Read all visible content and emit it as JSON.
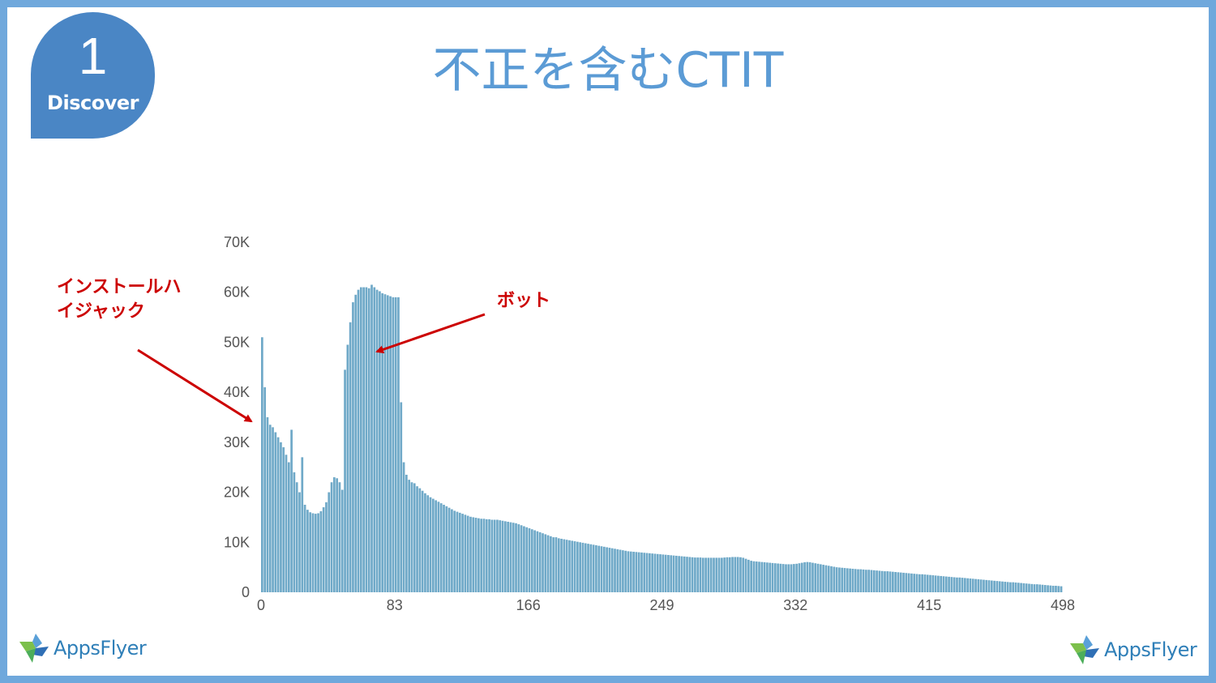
{
  "badge": {
    "number": "1",
    "label": "Discover"
  },
  "title": "不正を含むCTIT",
  "annotations": {
    "hijack": "インストールハイジャック",
    "bot": "ボット"
  },
  "logo": {
    "text": "AppsFlyer"
  },
  "colors": {
    "border": "#6fa8dc",
    "badge": "#4a86c5",
    "title": "#5b9bd5",
    "bar": "#6fa9c8",
    "annotation": "#cc0000"
  },
  "chart_data": {
    "type": "bar",
    "title": "",
    "xlabel": "",
    "ylabel": "",
    "ylim": [
      0,
      70000
    ],
    "xlim": [
      0,
      498
    ],
    "x_ticks": [
      0,
      83,
      166,
      249,
      332,
      415,
      498
    ],
    "y_ticks": [
      0,
      10000,
      20000,
      30000,
      40000,
      50000,
      60000,
      70000
    ],
    "y_tick_labels": [
      "0",
      "10K",
      "20K",
      "30K",
      "40K",
      "50K",
      "60K",
      "70K"
    ],
    "grid": false,
    "series": [
      {
        "values": [
          51000,
          41000,
          35000,
          33500,
          33000,
          32000,
          31000,
          30000,
          29000,
          27500,
          26000,
          32500,
          24000,
          22000,
          20000,
          27000,
          17500,
          16500,
          16000,
          15800,
          15700,
          15800,
          16200,
          17000,
          18000,
          20000,
          22000,
          23000,
          22800,
          22000,
          20500,
          44500,
          49500,
          54000,
          58000,
          59500,
          60500,
          61000,
          61000,
          61000,
          60800,
          61500,
          61000,
          60500,
          60200,
          59800,
          59600,
          59400,
          59200,
          59000,
          59000,
          59000,
          38000,
          26000,
          23500,
          22500,
          22000,
          21800,
          21200,
          20800,
          20300,
          19800,
          19400,
          19000,
          18700,
          18400,
          18100,
          17800,
          17500,
          17200,
          16900,
          16600,
          16300,
          16100,
          15900,
          15700,
          15500,
          15300,
          15100,
          15000,
          14900,
          14800,
          14700,
          14700,
          14600,
          14600,
          14500,
          14500,
          14500,
          14400,
          14300,
          14200,
          14100,
          14000,
          13900,
          13800,
          13600,
          13400,
          13200,
          13000,
          12800,
          12600,
          12400,
          12200,
          12000,
          11800,
          11600,
          11400,
          11200,
          11000,
          11000,
          10800,
          10700,
          10600,
          10500,
          10400,
          10300,
          10200,
          10100,
          10000,
          9900,
          9800,
          9700,
          9600,
          9500,
          9400,
          9300,
          9200,
          9100,
          9000,
          8900,
          8800,
          8700,
          8600,
          8500,
          8400,
          8300,
          8200,
          8150,
          8100,
          8050,
          8000,
          7950,
          7900,
          7850,
          7800,
          7750,
          7700,
          7650,
          7600,
          7550,
          7500,
          7450,
          7400,
          7350,
          7300,
          7250,
          7200,
          7150,
          7100,
          7050,
          7000,
          6950,
          6950,
          6950,
          6900,
          6900,
          6900,
          6900,
          6900,
          6900,
          6900,
          6900,
          6950,
          7000,
          7000,
          7050,
          7050,
          7050,
          7000,
          6900,
          6700,
          6500,
          6300,
          6200,
          6150,
          6100,
          6050,
          6000,
          5950,
          5900,
          5850,
          5800,
          5750,
          5700,
          5650,
          5600,
          5600,
          5600,
          5650,
          5700,
          5800,
          5900,
          6000,
          6050,
          6000,
          5900,
          5800,
          5700,
          5600,
          5500,
          5400,
          5300,
          5200,
          5100,
          5000,
          4950,
          4900,
          4850,
          4800,
          4750,
          4700,
          4650,
          4600,
          4600,
          4550,
          4500,
          4500,
          4450,
          4400,
          4350,
          4300,
          4250,
          4200,
          4200,
          4150,
          4100,
          4050,
          4000,
          3950,
          3900,
          3850,
          3800,
          3750,
          3700,
          3650,
          3600,
          3600,
          3550,
          3500,
          3450,
          3400,
          3350,
          3300,
          3250,
          3200,
          3150,
          3100,
          3050,
          3000,
          2950,
          2950,
          2900,
          2850,
          2800,
          2750,
          2700,
          2650,
          2600,
          2550,
          2500,
          2450,
          2400,
          2350,
          2300,
          2250,
          2200,
          2150,
          2100,
          2050,
          2000,
          2000,
          1950,
          1900,
          1850,
          1800,
          1750,
          1700,
          1650,
          1600,
          1600,
          1550,
          1500,
          1450,
          1400,
          1350,
          1300,
          1300,
          1250,
          1200
        ]
      }
    ]
  }
}
